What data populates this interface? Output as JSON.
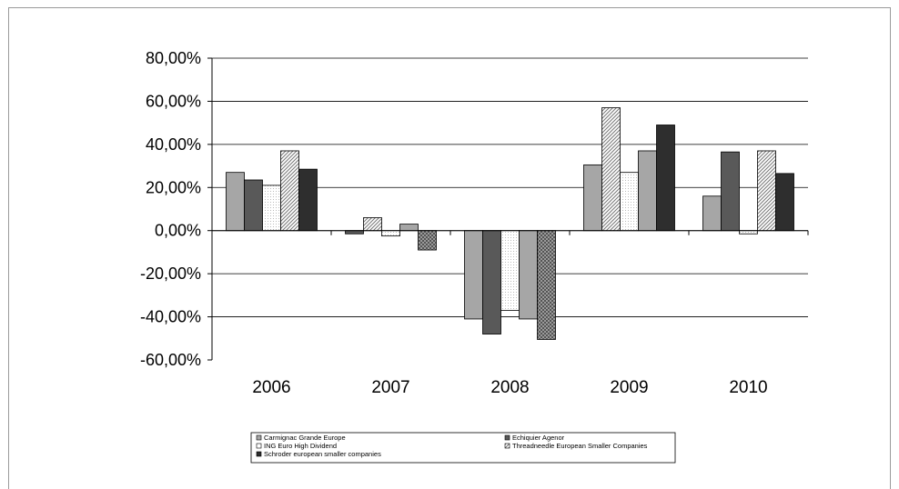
{
  "chart_data": {
    "type": "bar",
    "categories": [
      "2006",
      "2007",
      "2008",
      "2009",
      "2010"
    ],
    "series": [
      {
        "name": "Carmignac Grande Europe",
        "values": [
          27,
          null,
          -41,
          30.5,
          16
        ],
        "color": "#a6a6a6",
        "pattern": "solid"
      },
      {
        "name": "Echiquier Agenor",
        "values": [
          23.5,
          -1.5,
          -48,
          null,
          36.5
        ],
        "color": "#595959",
        "pattern": "solid"
      },
      {
        "name": "",
        "values": [
          null,
          6,
          null,
          57,
          null
        ],
        "color": "#c8c8c8",
        "pattern": "diagonal"
      },
      {
        "name": "ING Euro High Dividend",
        "values": [
          21,
          -2.5,
          -37,
          27,
          -1.5
        ],
        "color": "#ffffff",
        "pattern": "dotted"
      },
      {
        "name": "",
        "values": [
          null,
          3,
          -41,
          37,
          null
        ],
        "color": "#a6a6a6",
        "pattern": "solid"
      },
      {
        "name": "Threadneedle European Smaller Companies",
        "values": [
          37,
          null,
          null,
          null,
          37
        ],
        "color": "#e0e0e0",
        "pattern": "diagonal"
      },
      {
        "name": "",
        "values": [
          null,
          -9,
          -50.5,
          null,
          null
        ],
        "color": "#8a8a8a",
        "pattern": "checker"
      },
      {
        "name": "Schroder european smaller companies",
        "values": [
          28.5,
          null,
          null,
          49,
          26.5
        ],
        "color": "#2e2e2e",
        "pattern": "solid"
      }
    ],
    "y_ticks": [
      "80,00%",
      "60,00%",
      "40,00%",
      "20,00%",
      "0,00%",
      "-20,00%",
      "-40,00%",
      "-60,00%"
    ],
    "ylim": [
      -60,
      80
    ],
    "grid": true,
    "legend_position": "bottom",
    "legend": [
      {
        "label": "Carmignac Grande Europe",
        "color": "#a6a6a6",
        "pattern": "solid"
      },
      {
        "label": "Echiquier Agenor",
        "color": "#595959",
        "pattern": "solid"
      },
      {
        "label": "ING Euro High Dividend",
        "color": "#ffffff",
        "pattern": "solid"
      },
      {
        "label": "Threadneedle European Smaller Companies",
        "color": "#e0e0e0",
        "pattern": "diagonal"
      },
      {
        "label": "Schroder european smaller companies",
        "color": "#2e2e2e",
        "pattern": "solid"
      }
    ]
  }
}
